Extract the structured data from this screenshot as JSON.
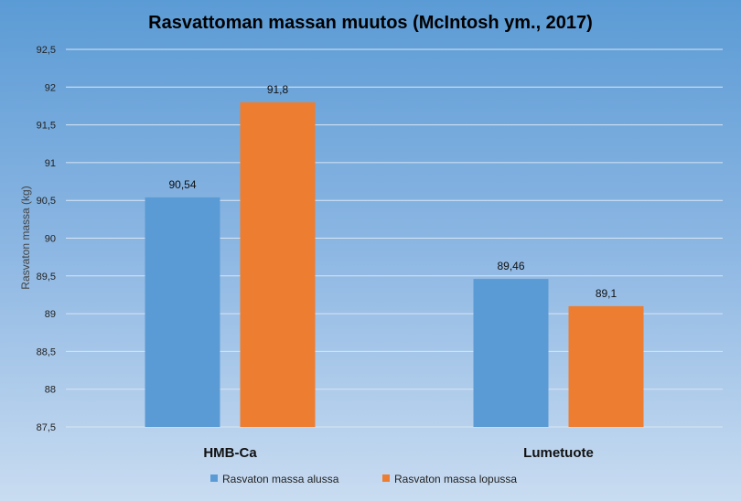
{
  "chart_data": {
    "type": "bar",
    "title": "Rasvattoman massan muutos (McIntosh ym., 2017)",
    "ylabel": "Rasvaton massa (kg)",
    "xlabel": "",
    "categories": [
      "HMB-Ca",
      "Lumetuote"
    ],
    "series": [
      {
        "name": "Rasvaton massa alussa",
        "values": [
          90.54,
          89.46
        ],
        "labels": [
          "90,54",
          "89,46"
        ],
        "color": "#5b9bd5"
      },
      {
        "name": "Rasvaton massa lopussa",
        "values": [
          91.8,
          89.1
        ],
        "labels": [
          "91,8",
          "89,1"
        ],
        "color": "#ed7d31"
      }
    ],
    "ylim": [
      87.5,
      92.5
    ],
    "yticks": [
      87.5,
      88,
      88.5,
      89,
      89.5,
      90,
      90.5,
      91,
      91.5,
      92,
      92.5
    ],
    "ytick_labels": [
      "87,5",
      "88",
      "88,5",
      "89",
      "89,5",
      "90",
      "90,5",
      "91",
      "91,5",
      "92",
      "92,5"
    ],
    "grid": true,
    "legend_position": "bottom"
  }
}
